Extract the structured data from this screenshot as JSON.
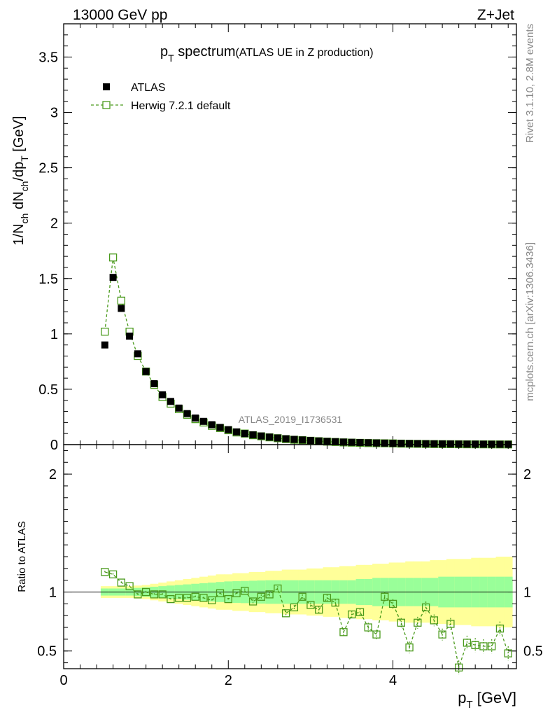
{
  "header": {
    "energy_label": "13000 GeV pp",
    "process_label": "Z+Jet",
    "rivet_label": "Rivet 3.1.10,  2.8M events",
    "mcplots_label": "mcplots.cern.ch [arXiv:1306.3436]",
    "analysis_label": "ATLAS_2019_I1736531"
  },
  "colors": {
    "data": "#000000",
    "mc": "#4a9a1c",
    "band_inner": "#99ff99",
    "band_outer": "#ffff99"
  },
  "chart_data": [
    {
      "type": "scatter",
      "title_main": "p",
      "title_sub": "T",
      "title_rest": " spectrum",
      "title_note": "(ATLAS UE in Z production)",
      "ylabel": {
        "a": "1/N",
        "b": "ch",
        "c": " dN",
        "d": "ch",
        "e": "/dp",
        "f": "T",
        "g": " [GeV]"
      },
      "xlim": [
        0,
        5.5
      ],
      "ylim": [
        0,
        3.8
      ],
      "yticks": [
        0,
        0.5,
        1,
        1.5,
        2,
        2.5,
        3,
        3.5
      ],
      "ytick_labels": [
        "0",
        "0.5",
        "1",
        "1.5",
        "2",
        "2.5",
        "3",
        "3.5"
      ],
      "legend": [
        {
          "name": "ATLAS",
          "marker": "filled-square"
        },
        {
          "name": "Herwig 7.2.1 default",
          "marker": "open-square-dashed"
        }
      ],
      "x": [
        0.5,
        0.6,
        0.7,
        0.8,
        0.9,
        1.0,
        1.1,
        1.2,
        1.3,
        1.4,
        1.5,
        1.6,
        1.7,
        1.8,
        1.9,
        2.0,
        2.1,
        2.2,
        2.3,
        2.4,
        2.5,
        2.6,
        2.7,
        2.8,
        2.9,
        3.0,
        3.1,
        3.2,
        3.3,
        3.4,
        3.5,
        3.6,
        3.7,
        3.8,
        3.9,
        4.0,
        4.1,
        4.2,
        4.3,
        4.4,
        4.5,
        4.6,
        4.7,
        4.8,
        4.9,
        5.0,
        5.1,
        5.2,
        5.3,
        5.4
      ],
      "series": [
        {
          "name": "ATLAS",
          "values": [
            0.9,
            1.51,
            1.23,
            0.98,
            0.82,
            0.66,
            0.55,
            0.45,
            0.39,
            0.33,
            0.28,
            0.24,
            0.21,
            0.18,
            0.155,
            0.135,
            0.115,
            0.1,
            0.088,
            0.078,
            0.068,
            0.06,
            0.053,
            0.047,
            0.042,
            0.037,
            0.033,
            0.029,
            0.026,
            0.023,
            0.021,
            0.019,
            0.017,
            0.015,
            0.0135,
            0.012,
            0.011,
            0.0098,
            0.0088,
            0.0079,
            0.0071,
            0.0064,
            0.0058,
            0.0052,
            0.0047,
            0.0042,
            0.0038,
            0.0034,
            0.0031,
            0.0028
          ]
        },
        {
          "name": "Herwig 7.2.1 default",
          "values": [
            1.02,
            1.69,
            1.3,
            1.02,
            0.8,
            0.66,
            0.54,
            0.43,
            0.37,
            0.32,
            0.27,
            0.23,
            0.2,
            0.17,
            0.15,
            0.13,
            0.11,
            0.1,
            0.085,
            0.075,
            0.066,
            0.058,
            0.05,
            0.044,
            0.04,
            0.035,
            0.031,
            0.027,
            0.024,
            0.02,
            0.018,
            0.016,
            0.014,
            0.013,
            0.012,
            0.011,
            0.009,
            0.008,
            0.007,
            0.006,
            0.005,
            0.0045,
            0.004,
            0.0035,
            0.003,
            0.0028,
            0.0025,
            0.0022,
            0.002,
            0.0018
          ]
        }
      ]
    },
    {
      "type": "scatter",
      "ylabel": "Ratio to ATLAS",
      "xlabel_main": "p",
      "xlabel_sub": "T",
      "xlabel_rest": " [GeV]",
      "xlim": [
        0,
        5.5
      ],
      "ylim": [
        0.35,
        2.25
      ],
      "xticks": [
        0,
        2,
        4
      ],
      "xtick_labels": [
        "0",
        "2",
        "4"
      ],
      "yticks": [
        0.5,
        1,
        2
      ],
      "ytick_labels": [
        "0.5",
        "1",
        "2"
      ],
      "x": [
        0.5,
        0.6,
        0.7,
        0.8,
        0.9,
        1.0,
        1.1,
        1.2,
        1.3,
        1.4,
        1.5,
        1.6,
        1.7,
        1.8,
        1.9,
        2.0,
        2.1,
        2.2,
        2.3,
        2.4,
        2.5,
        2.6,
        2.7,
        2.8,
        2.9,
        3.0,
        3.1,
        3.2,
        3.3,
        3.4,
        3.5,
        3.6,
        3.7,
        3.8,
        3.9,
        4.0,
        4.1,
        4.2,
        4.3,
        4.4,
        4.5,
        4.6,
        4.7,
        4.8,
        4.9,
        5.0,
        5.1,
        5.2,
        5.3,
        5.4
      ],
      "band_inner": [
        0.03,
        0.03,
        0.03,
        0.03,
        0.035,
        0.04,
        0.045,
        0.05,
        0.055,
        0.06,
        0.065,
        0.07,
        0.075,
        0.08,
        0.085,
        0.09,
        0.092,
        0.094,
        0.096,
        0.098,
        0.1,
        0.1,
        0.1,
        0.1,
        0.1,
        0.1,
        0.1,
        0.1,
        0.1,
        0.1,
        0.1,
        0.11,
        0.11,
        0.12,
        0.12,
        0.12,
        0.12,
        0.12,
        0.12,
        0.12,
        0.12,
        0.13,
        0.13,
        0.13,
        0.13,
        0.13,
        0.13,
        0.13,
        0.13,
        0.13
      ],
      "band_outer": [
        0.05,
        0.05,
        0.05,
        0.05,
        0.055,
        0.06,
        0.07,
        0.08,
        0.09,
        0.1,
        0.11,
        0.12,
        0.13,
        0.14,
        0.15,
        0.15,
        0.16,
        0.16,
        0.17,
        0.17,
        0.18,
        0.18,
        0.19,
        0.19,
        0.19,
        0.2,
        0.2,
        0.21,
        0.21,
        0.22,
        0.22,
        0.23,
        0.23,
        0.24,
        0.24,
        0.25,
        0.25,
        0.26,
        0.26,
        0.26,
        0.27,
        0.27,
        0.28,
        0.28,
        0.28,
        0.29,
        0.29,
        0.29,
        0.3,
        0.3
      ],
      "series": [
        {
          "name": "Herwig 7.2.1 default / ATLAS",
          "values": [
            1.17,
            1.15,
            1.08,
            1.05,
            0.98,
            1.0,
            0.98,
            0.98,
            0.94,
            0.95,
            0.95,
            0.96,
            0.95,
            0.93,
            0.99,
            0.94,
            0.99,
            1.01,
            0.92,
            0.96,
            0.98,
            1.03,
            0.82,
            0.87,
            0.96,
            0.89,
            0.85,
            0.95,
            0.91,
            0.66,
            0.81,
            0.83,
            0.7,
            0.64,
            0.96,
            0.9,
            0.74,
            0.53,
            0.74,
            0.87,
            0.76,
            0.64,
            0.73,
            0.36,
            0.57,
            0.55,
            0.54,
            0.54,
            0.69,
            0.48
          ],
          "errors": [
            0.01,
            0.01,
            0.01,
            0.01,
            0.01,
            0.01,
            0.01,
            0.01,
            0.01,
            0.01,
            0.01,
            0.01,
            0.01,
            0.01,
            0.01,
            0.01,
            0.01,
            0.02,
            0.02,
            0.02,
            0.02,
            0.02,
            0.02,
            0.02,
            0.02,
            0.02,
            0.03,
            0.03,
            0.03,
            0.03,
            0.03,
            0.03,
            0.04,
            0.04,
            0.04,
            0.04,
            0.04,
            0.05,
            0.05,
            0.05,
            0.05,
            0.05,
            0.05,
            0.06,
            0.06,
            0.06,
            0.06,
            0.06,
            0.06,
            0.06
          ]
        }
      ]
    }
  ]
}
